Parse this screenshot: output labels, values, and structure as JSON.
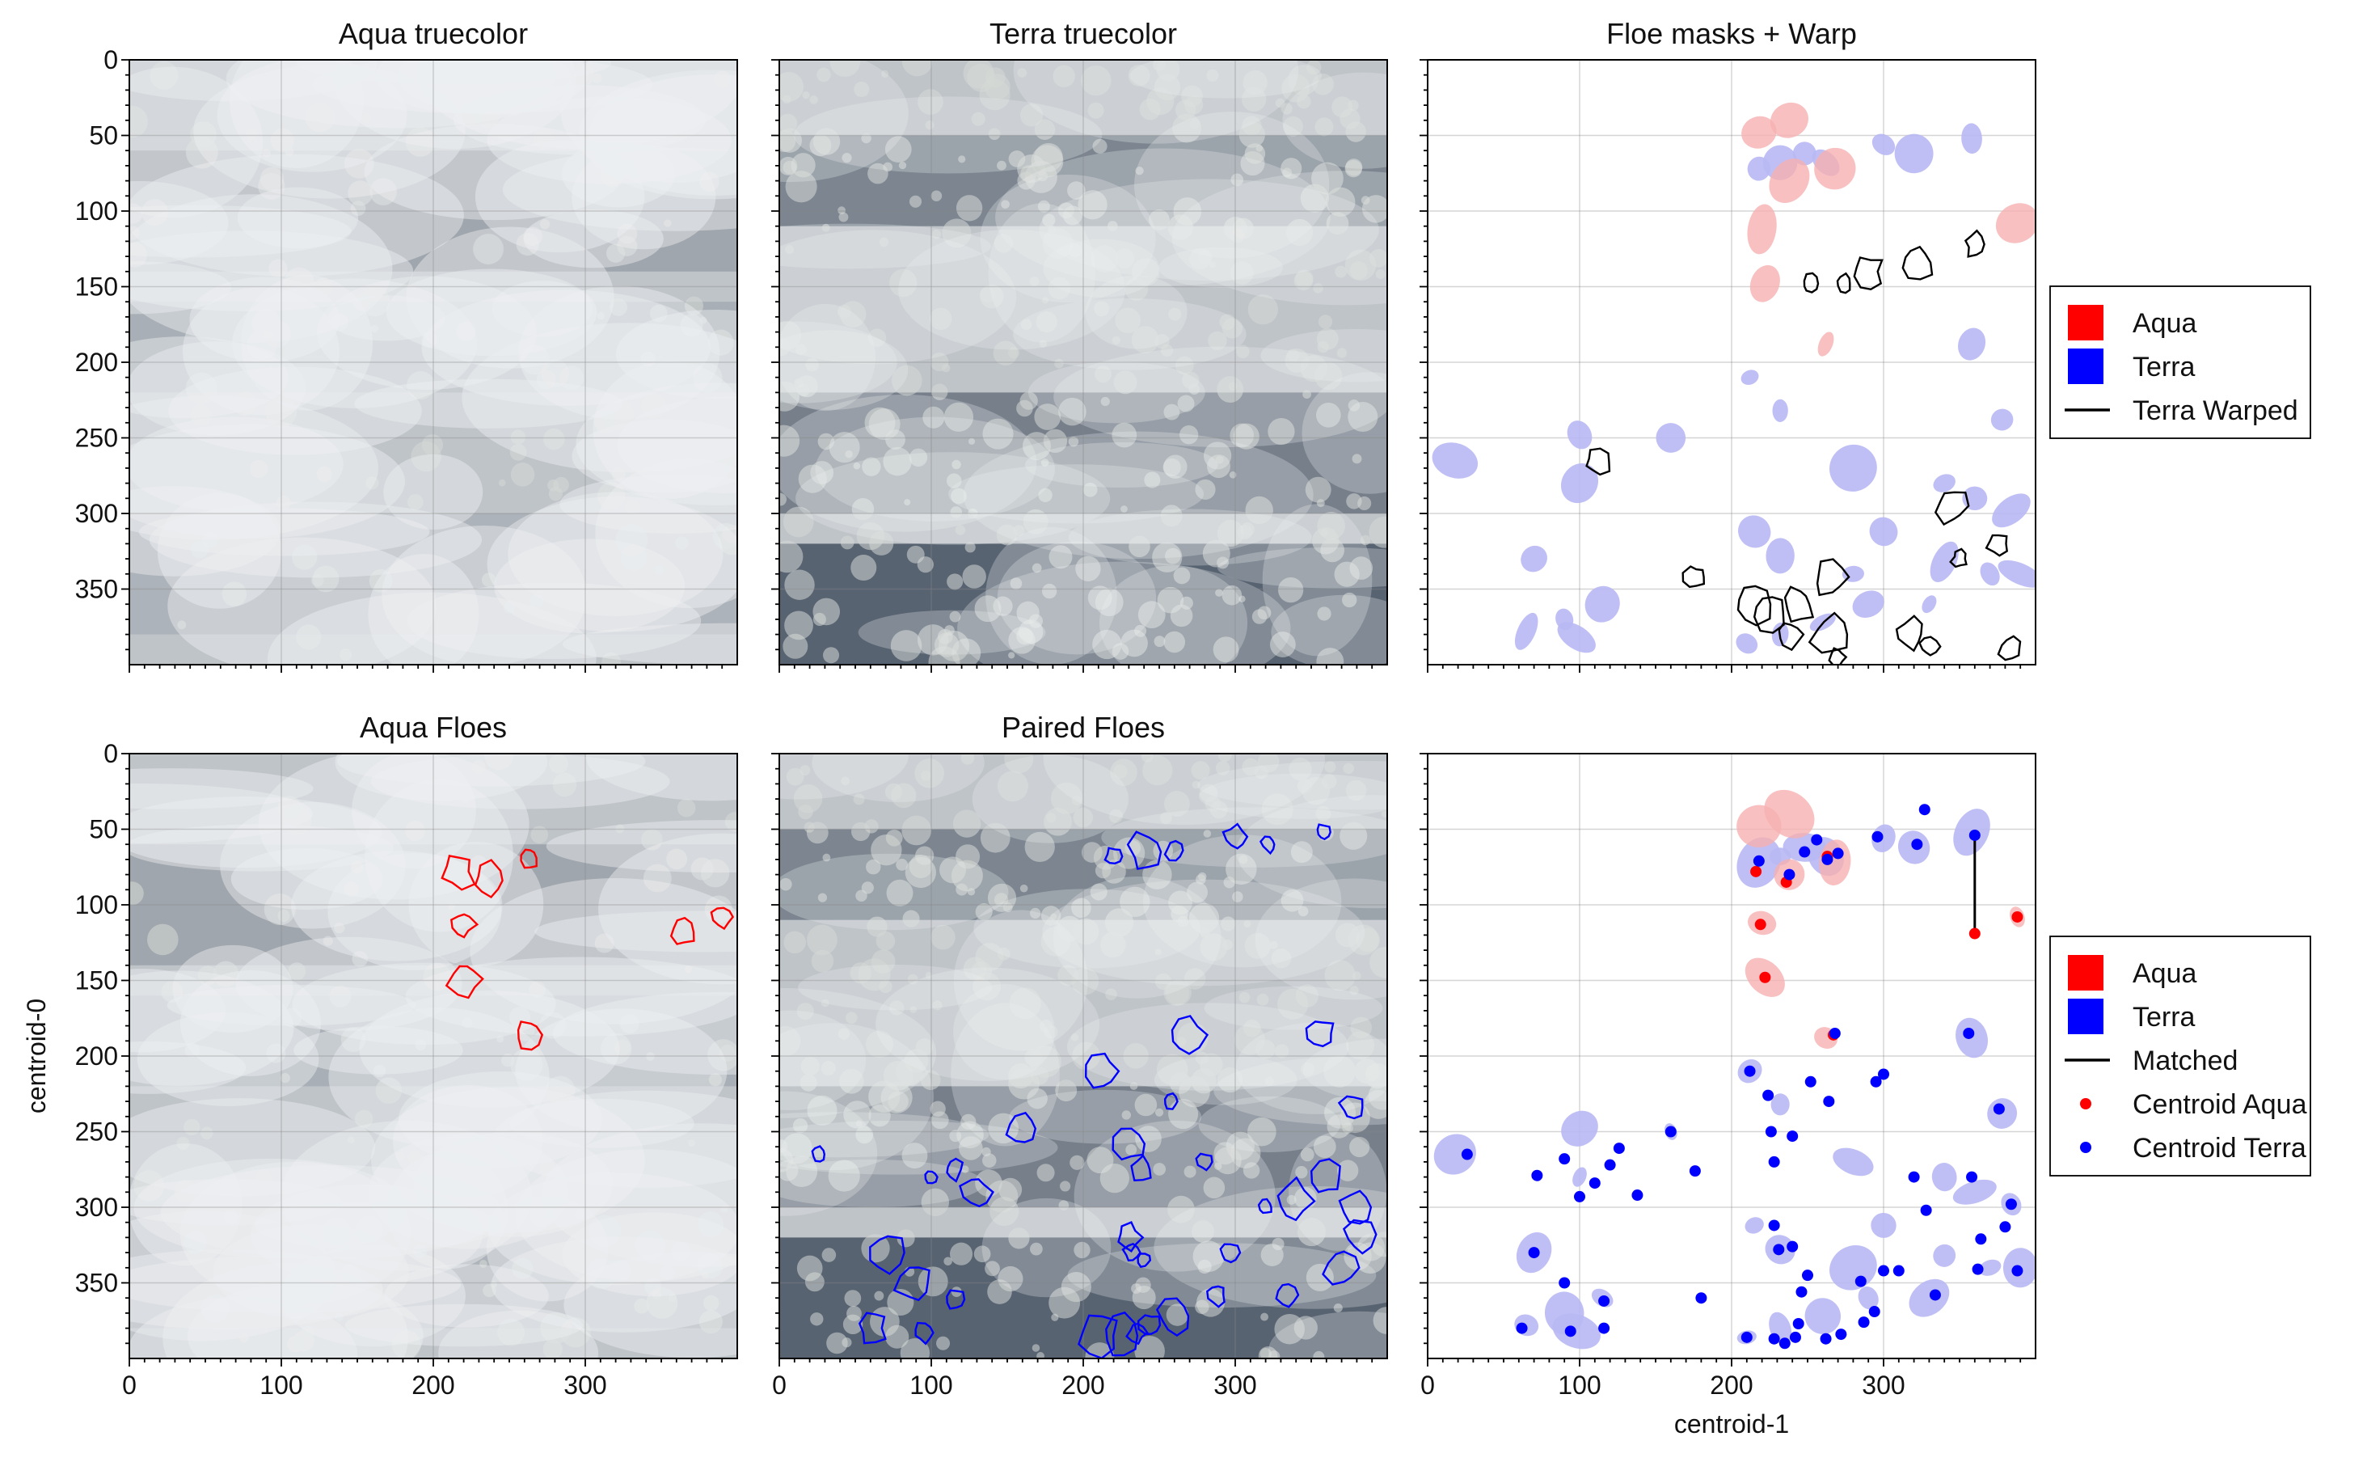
{
  "colors": {
    "aqua": "#ff0000",
    "terra": "#0000ff",
    "aqua_mask": "#f6b0b0",
    "terra_mask": "#b8b8f4",
    "line": "#000000",
    "sat_base": "#bfc4c9",
    "cloud": "#eef0f2",
    "water": "#1e2c40"
  },
  "chart_data": [
    {
      "type": "image",
      "title": "Aqua truecolor",
      "xlim": [
        0,
        400
      ],
      "ylim": [
        400,
        0
      ],
      "yticks": [
        0,
        50,
        100,
        150,
        200,
        250,
        300,
        350
      ]
    },
    {
      "type": "image",
      "title": "Terra truecolor",
      "xlim": [
        0,
        400
      ],
      "ylim": [
        400,
        0
      ]
    },
    {
      "type": "image",
      "title": "Floe masks + Warp",
      "xlim": [
        0,
        400
      ],
      "ylim": [
        400,
        0
      ],
      "legend": {
        "position": "right",
        "entries": [
          "Aqua",
          "Terra",
          "Terra Warped"
        ]
      },
      "aqua_masks": [
        [
          218,
          48
        ],
        [
          238,
          80
        ],
        [
          238,
          40
        ],
        [
          268,
          72
        ],
        [
          220,
          112
        ],
        [
          222,
          148
        ],
        [
          262,
          188
        ],
        [
          388,
          108
        ]
      ],
      "terra_masks": [
        [
          218,
          72
        ],
        [
          232,
          68
        ],
        [
          248,
          62
        ],
        [
          262,
          68
        ],
        [
          300,
          56
        ],
        [
          320,
          62
        ],
        [
          358,
          52
        ],
        [
          18,
          265
        ],
        [
          100,
          248
        ],
        [
          160,
          250
        ],
        [
          212,
          210
        ],
        [
          232,
          232
        ],
        [
          280,
          270
        ],
        [
          340,
          280
        ],
        [
          360,
          290
        ],
        [
          215,
          312
        ],
        [
          232,
          328
        ],
        [
          280,
          340
        ],
        [
          300,
          312
        ],
        [
          340,
          332
        ],
        [
          370,
          340
        ],
        [
          70,
          330
        ],
        [
          100,
          280
        ],
        [
          115,
          360
        ],
        [
          90,
          370
        ],
        [
          65,
          378
        ],
        [
          98,
          382
        ],
        [
          210,
          386
        ],
        [
          232,
          380
        ],
        [
          260,
          372
        ],
        [
          290,
          360
        ],
        [
          330,
          360
        ],
        [
          358,
          188
        ],
        [
          378,
          238
        ],
        [
          384,
          298
        ],
        [
          390,
          340
        ]
      ],
      "warped": [
        [
          252,
          148
        ],
        [
          274,
          148
        ],
        [
          290,
          140
        ],
        [
          322,
          134
        ],
        [
          360,
          122
        ],
        [
          112,
          266
        ],
        [
          176,
          342
        ],
        [
          265,
          342
        ],
        [
          345,
          295
        ],
        [
          350,
          330
        ],
        [
          375,
          320
        ],
        [
          225,
          365
        ],
        [
          238,
          380
        ],
        [
          270,
          395
        ],
        [
          318,
          380
        ],
        [
          384,
          390
        ],
        [
          214,
          360
        ],
        [
          244,
          360
        ],
        [
          265,
          380
        ],
        [
          330,
          388
        ]
      ]
    },
    {
      "type": "image",
      "title": "Aqua Floes",
      "xlim": [
        0,
        400
      ],
      "ylim": [
        400,
        0
      ],
      "xticks": [
        0,
        100,
        200,
        300
      ],
      "yticks": [
        0,
        50,
        100,
        150,
        200,
        250,
        300,
        350
      ],
      "ylabel": "centroid-0",
      "outlines": [
        [
          217,
          78
        ],
        [
          236,
          84
        ],
        [
          263,
          69
        ],
        [
          219,
          113
        ],
        [
          221,
          149
        ],
        [
          263,
          186
        ],
        [
          364,
          118
        ],
        [
          390,
          108
        ]
      ]
    },
    {
      "type": "image",
      "title": "Paired Floes",
      "xlim": [
        0,
        400
      ],
      "ylim": [
        400,
        0
      ],
      "xticks": [
        0,
        100,
        200,
        300
      ],
      "outlines": [
        [
          220,
          68
        ],
        [
          242,
          65
        ],
        [
          260,
          64
        ],
        [
          300,
          55
        ],
        [
          322,
          60
        ],
        [
          358,
          52
        ],
        [
          26,
          265
        ],
        [
          160,
          248
        ],
        [
          212,
          210
        ],
        [
          258,
          230
        ],
        [
          268,
          186
        ],
        [
          356,
          185
        ],
        [
          377,
          234
        ],
        [
          230,
          258
        ],
        [
          238,
          275
        ],
        [
          280,
          270
        ],
        [
          320,
          300
        ],
        [
          338,
          296
        ],
        [
          360,
          280
        ],
        [
          380,
          300
        ],
        [
          382,
          318
        ],
        [
          370,
          340
        ],
        [
          70,
          330
        ],
        [
          90,
          350
        ],
        [
          116,
          361
        ],
        [
          62,
          380
        ],
        [
          95,
          383
        ],
        [
          210,
          385
        ],
        [
          225,
          385
        ],
        [
          235,
          383
        ],
        [
          244,
          378
        ],
        [
          260,
          372
        ],
        [
          288,
          358
        ],
        [
          334,
          358
        ],
        [
          296,
          330
        ],
        [
          230,
          320
        ],
        [
          232,
          330
        ],
        [
          240,
          335
        ],
        [
          100,
          280
        ],
        [
          115,
          275
        ],
        [
          130,
          290
        ]
      ]
    },
    {
      "type": "scatter",
      "title": "",
      "xlabel": "centroid-1",
      "xlim": [
        0,
        400
      ],
      "ylim": [
        400,
        0
      ],
      "xticks": [
        0,
        100,
        200,
        300
      ],
      "legend": {
        "position": "right",
        "entries": [
          "Aqua",
          "Terra",
          "Matched",
          "Centroid Aqua",
          "Centroid Terra"
        ]
      },
      "series": [
        {
          "name": "Centroid Aqua",
          "points": [
            [
              216,
              78
            ],
            [
              236,
              85
            ],
            [
              263,
              68
            ],
            [
              219,
              113
            ],
            [
              222,
              148
            ],
            [
              267,
              186
            ],
            [
              360,
              119
            ],
            [
              388,
              108
            ]
          ]
        },
        {
          "name": "Centroid Terra",
          "points": [
            [
              218,
              71
            ],
            [
              238,
              80
            ],
            [
              248,
              65
            ],
            [
              256,
              57
            ],
            [
              270,
              66
            ],
            [
              263,
              70
            ],
            [
              296,
              55
            ],
            [
              322,
              60
            ],
            [
              327,
              37
            ],
            [
              360,
              54
            ],
            [
              26,
              265
            ],
            [
              72,
              279
            ],
            [
              90,
              268
            ],
            [
              100,
              293
            ],
            [
              110,
              284
            ],
            [
              120,
              272
            ],
            [
              126,
              261
            ],
            [
              138,
              292
            ],
            [
              160,
              250
            ],
            [
              176,
              276
            ],
            [
              212,
              210
            ],
            [
              224,
              226
            ],
            [
              226,
              250
            ],
            [
              228,
              270
            ],
            [
              240,
              253
            ],
            [
              252,
              217
            ],
            [
              268,
              185
            ],
            [
              264,
              230
            ],
            [
              295,
              217
            ],
            [
              300,
              212
            ],
            [
              320,
              280
            ],
            [
              328,
              302
            ],
            [
              356,
              185
            ],
            [
              358,
              280
            ],
            [
              364,
              321
            ],
            [
              362,
              341
            ],
            [
              376,
              235
            ],
            [
              380,
              313
            ],
            [
              384,
              298
            ],
            [
              388,
              342
            ],
            [
              228,
              312
            ],
            [
              231,
              328
            ],
            [
              240,
              326
            ],
            [
              70,
              330
            ],
            [
              90,
              350
            ],
            [
              116,
              362
            ],
            [
              62,
              380
            ],
            [
              94,
              382
            ],
            [
              116,
              380
            ],
            [
              180,
              360
            ],
            [
              210,
              386
            ],
            [
              228,
              387
            ],
            [
              235,
              390
            ],
            [
              242,
              386
            ],
            [
              244,
              377
            ],
            [
              262,
              387
            ],
            [
              272,
              384
            ],
            [
              285,
              349
            ],
            [
              287,
              376
            ],
            [
              300,
              342
            ],
            [
              310,
              342
            ],
            [
              334,
              358
            ],
            [
              246,
              356
            ],
            [
              250,
              345
            ],
            [
              294,
              369
            ]
          ]
        },
        {
          "name": "Matched",
          "segments": [
            [
              [
                360,
                54
              ],
              [
                360,
                119
              ]
            ]
          ]
        }
      ]
    }
  ]
}
